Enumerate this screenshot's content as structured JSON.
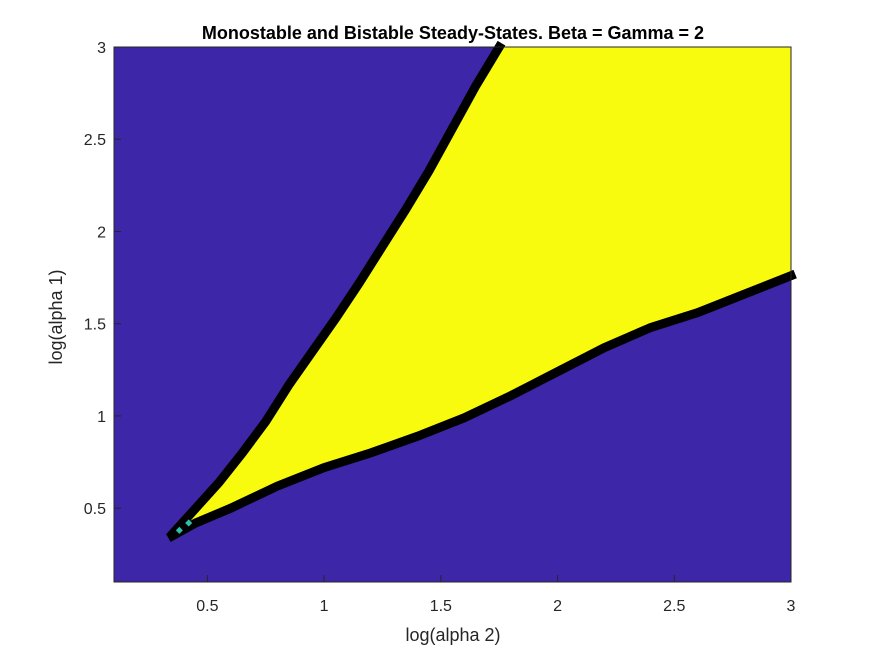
{
  "chart_data": {
    "type": "heatmap",
    "title": "Monostable and Bistable Steady-States.   Beta = Gamma = 2",
    "xlabel": "log(alpha 2)",
    "ylabel": "log(alpha 1)",
    "xlim": [
      0.1,
      3
    ],
    "ylim": [
      0.1,
      3
    ],
    "xticks": [
      0.5,
      1,
      1.5,
      2,
      2.5,
      3
    ],
    "yticks": [
      0.5,
      1,
      1.5,
      2,
      2.5,
      3
    ],
    "xtick_labels": [
      "0.5",
      "1",
      "1.5",
      "2",
      "2.5",
      "3"
    ],
    "ytick_labels": [
      "0.5",
      "1",
      "1.5",
      "2",
      "2.5",
      "3"
    ],
    "grid": false,
    "colors": {
      "monostable": "#3e26a8",
      "bistable": "#f9fb0e",
      "boundary": "#000000",
      "cusp": "#2fbfb0"
    },
    "regions": {
      "bistable_upper_boundary": {
        "x": [
          0.35,
          0.45,
          0.55,
          0.65,
          0.75,
          0.85,
          0.95,
          1.05,
          1.15,
          1.25,
          1.35,
          1.45,
          1.55,
          1.65,
          1.75
        ],
        "y": [
          0.36,
          0.5,
          0.64,
          0.8,
          0.97,
          1.17,
          1.35,
          1.53,
          1.72,
          1.92,
          2.12,
          2.33,
          2.56,
          2.79,
          3.0
        ]
      },
      "bistable_lower_boundary": {
        "x": [
          0.35,
          0.45,
          0.6,
          0.8,
          1.0,
          1.2,
          1.4,
          1.6,
          1.8,
          2.0,
          2.2,
          2.4,
          2.6,
          2.8,
          3.0
        ],
        "y": [
          0.35,
          0.42,
          0.5,
          0.62,
          0.72,
          0.8,
          0.89,
          0.99,
          1.11,
          1.24,
          1.37,
          1.48,
          1.56,
          1.66,
          1.76
        ]
      },
      "cusp_points": {
        "x": [
          0.38,
          0.42
        ],
        "y": [
          0.38,
          0.42
        ]
      }
    }
  }
}
